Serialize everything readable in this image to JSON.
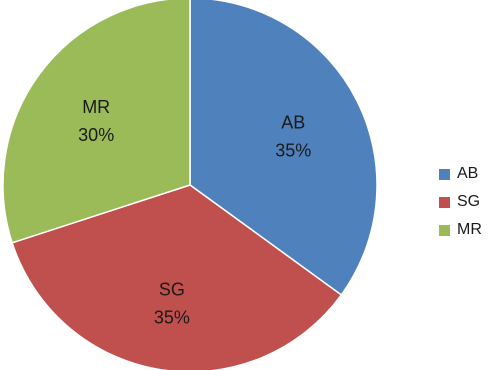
{
  "chart_data": {
    "type": "pie",
    "title": "",
    "legend_position": "right",
    "slices": [
      {
        "label": "AB",
        "value": 35,
        "value_label": "35%",
        "color": "#4F81BD"
      },
      {
        "label": "SG",
        "value": 35,
        "value_label": "35%",
        "color": "#C0504D"
      },
      {
        "label": "MR",
        "value": 30,
        "value_label": "30%",
        "color": "#9BBB59"
      }
    ]
  },
  "legend": {
    "items": [
      {
        "label": "AB",
        "color": "#4F81BD"
      },
      {
        "label": "SG",
        "color": "#C0504D"
      },
      {
        "label": "MR",
        "color": "#9BBB59"
      }
    ]
  }
}
